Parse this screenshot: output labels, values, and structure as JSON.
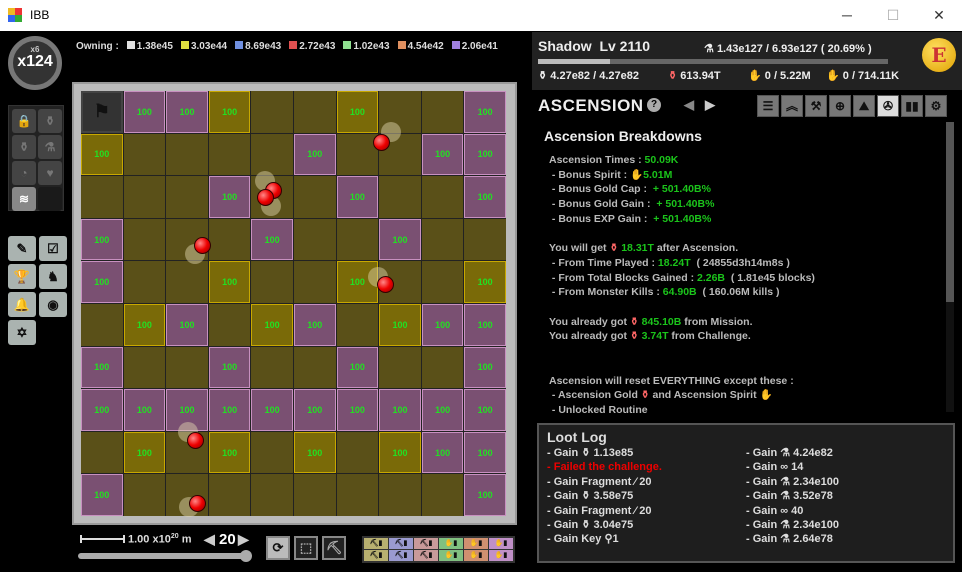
{
  "window": {
    "title": "IBB",
    "min": "─",
    "max": "☐",
    "close": "✕"
  },
  "multiplier": {
    "small": "x6",
    "big": "x124"
  },
  "owning": {
    "label": "Owning :",
    "items": [
      {
        "color": "#e0e0e0",
        "value": "1.38e45"
      },
      {
        "color": "#e0e040",
        "value": "3.03e44"
      },
      {
        "color": "#7090e0",
        "value": "8.69e43"
      },
      {
        "color": "#e05050",
        "value": "2.72e43"
      },
      {
        "color": "#90e090",
        "value": "1.02e43"
      },
      {
        "color": "#e09060",
        "value": "4.54e42"
      },
      {
        "color": "#a080e0",
        "value": "2.06e41"
      }
    ]
  },
  "grid": {
    "cell_value": "100",
    "rows": [
      "FPPY..Y..P",
      "Y....P..PP",
      "...P..P..P",
      "P...P..P..",
      "P..Y..Y..Y",
      ".YP.YP.YPP",
      "P..P..P..P",
      "PPPPPPPPPP",
      ".Y.Y.Y.YPP",
      "P........P"
    ]
  },
  "bottom": {
    "scale": "1.00 x10",
    "scale_exp": "20",
    "scale_unit": "m",
    "level": "20",
    "slider_value": 1.0,
    "filters": [
      "⛏▮",
      "⛏▮",
      "⛏▮",
      "✋▮",
      "✋▮",
      "✋▮",
      "⛏▮",
      "⛏▮",
      "⛏▮",
      "✋▮",
      "✋▮",
      "✋▮"
    ],
    "filter_colors": [
      "#b8b070",
      "#9a9ad0",
      "#c89a9a",
      "#80c080",
      "#d09070",
      "#c090c8"
    ]
  },
  "player": {
    "name": "Shadow",
    "level": "Lv 2110",
    "exp": "1.43e127 / 6.93e127  ( 20.69% )",
    "exp_fraction": 0.2069,
    "gold": "4.27e82 / 4.27e82",
    "asc_gold": "613.94T",
    "spirit": "0 / 5.22M",
    "asc_spirit": "0 / 714.11K",
    "coin_letter": "E"
  },
  "panel": {
    "title": "ASCENSION",
    "help": "?",
    "prev": "◀",
    "next": "▶",
    "tabs": [
      "☰",
      "︽",
      "⚒",
      "⊕",
      "⛰",
      "✇",
      "▮▮",
      "⚙"
    ],
    "active_tab": 5
  },
  "breakdown": {
    "heading": "Ascension Breakdowns",
    "l1a": "Ascension Times : ",
    "l1b": "50.09K",
    "l2a": " - Bonus Spirit : ",
    "l2i": "✋",
    "l2b": "5.01M",
    "l3a": " - Bonus Gold Cap :  ",
    "l3b": "+ 501.40B%",
    "l4a": " - Bonus Gold Gain :  ",
    "l4b": "+ 501.40B%",
    "l5a": " - Bonus EXP Gain :  ",
    "l5b": "+ 501.40B%",
    "l6a": "You will get ",
    "l6i": "⚱",
    "l6b": "18.31T",
    "l6c": " after Ascension.",
    "l7a": " - From Time Played : ",
    "l7b": "18.24T",
    "l7c": "  ( 24855d3h14m8s )",
    "l8a": " - From Total Blocks Gained : ",
    "l8b": "2.26B",
    "l8c": "  ( 1.81e45 blocks)",
    "l9a": " - From Monster Kills : ",
    "l9b": "64.90B",
    "l9c": "  ( 160.06M kills )",
    "l10a": "You already got ",
    "l10b": "845.10B",
    "l10c": " from Mission.",
    "l11a": "You already got ",
    "l11b": "3.74T",
    "l11c": " from Challenge.",
    "l12": "Ascension will reset EVERYTHING except these :",
    "l13a": " - Ascension Gold ",
    "l13b": " and Ascension Spirit ",
    "l14": " - Unlocked Routine"
  },
  "loot": {
    "title": "Loot Log",
    "left": [
      "- Gain ⚱ 1.13e85",
      "- Failed the challenge.",
      "- Gain Fragment  ⁄ 20",
      "- Gain ⚱ 3.58e75",
      "- Gain Fragment  ⁄ 20",
      "- Gain ⚱ 3.04e75",
      "- Gain  Key  ⚲1"
    ],
    "right": [
      "- Gain ⚗ 4.24e82",
      "- Gain  ∞ 14",
      "- Gain ⚗ 2.34e100",
      "- Gain ⚗ 3.52e78",
      "- Gain  ∞ 40",
      "- Gain ⚗ 2.34e100",
      "- Gain ⚗ 2.64e78"
    ]
  }
}
